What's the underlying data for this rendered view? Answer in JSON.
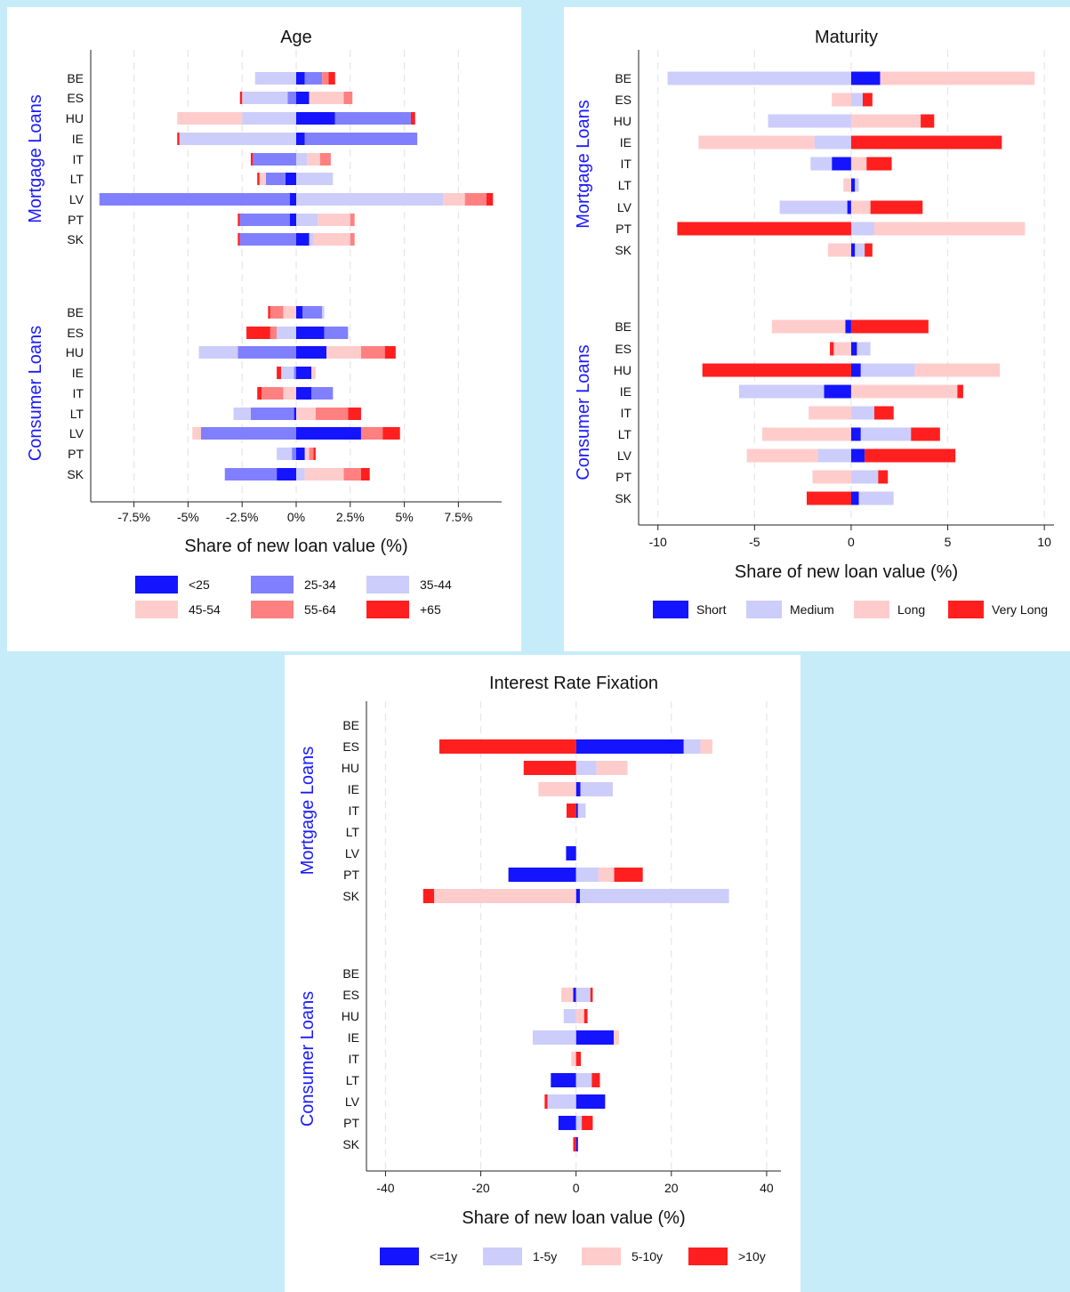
{
  "chart_data": [
    {
      "type": "bar",
      "orientation": "horizontal",
      "stacked": "diverging",
      "title": "Age",
      "xlabel": "Share of new loan value (%)",
      "xlim": [
        -9.5,
        9.5
      ],
      "x_ticks": [
        -7.5,
        -5,
        -2.5,
        0,
        2.5,
        5,
        7.5
      ],
      "x_tick_labels": [
        "-7.5%",
        "-5%",
        "-2.5%",
        "0%",
        "2.5%",
        "5%",
        "7.5%"
      ],
      "grid": "vertical dashed",
      "legend_placement": "bottom",
      "groups": [
        {
          "label": "Mortgage Loans",
          "categories": [
            "BE",
            "ES",
            "HU",
            "IE",
            "IT",
            "LT",
            "LV",
            "PT",
            "SK"
          ]
        },
        {
          "label": "Consumer Loans",
          "categories": [
            "BE",
            "ES",
            "HU",
            "IE",
            "IT",
            "LT",
            "LV",
            "PT",
            "SK"
          ]
        }
      ],
      "series": [
        {
          "name": "<25",
          "color": "#1414ff"
        },
        {
          "name": "25-34",
          "color": "#8080ff"
        },
        {
          "name": "35-44",
          "color": "#cccdfa"
        },
        {
          "name": "45-54",
          "color": "#ffcccc"
        },
        {
          "name": "55-64",
          "color": "#ff8080"
        },
        {
          "name": "+65",
          "color": "#ff1f1f"
        }
      ],
      "values": [
        [
          [
            0.4,
            0.8,
            -1.9,
            0,
            0.3,
            0.3
          ],
          [
            0.6,
            -0.4,
            -2.1,
            1.6,
            0.4,
            -0.1
          ],
          [
            1.8,
            3.5,
            -2.5,
            -3,
            0,
            0.2
          ],
          [
            0.4,
            5.2,
            -5.4,
            0,
            0,
            -0.1
          ],
          [
            0,
            -2,
            0.5,
            0.6,
            0.5,
            -0.1
          ],
          [
            -0.5,
            -0.9,
            1.7,
            -0.3,
            0,
            -0.1
          ],
          [
            -0.3,
            -8.8,
            6.8,
            1,
            1,
            0.3
          ],
          [
            -0.3,
            -2.3,
            1,
            1.5,
            0.2,
            -0.1
          ],
          [
            0.6,
            -2.6,
            0.2,
            1.7,
            0.2,
            -0.1
          ]
        ],
        [
          [
            0.3,
            0.9,
            0.1,
            -0.6,
            -0.6,
            -0.1
          ],
          [
            1.3,
            1.1,
            -0.9,
            0,
            -0.3,
            -1.1
          ],
          [
            1.4,
            -2.7,
            -1.8,
            1.6,
            1.1,
            0.5
          ],
          [
            0.7,
            -0.1,
            -0.6,
            0.2,
            0,
            -0.2
          ],
          [
            0.7,
            1,
            0,
            -0.6,
            -1,
            -0.2
          ],
          [
            -0.1,
            -2,
            -0.8,
            0.9,
            1.5,
            0.6
          ],
          [
            3,
            -4.4,
            0,
            -0.4,
            1,
            0.8
          ],
          [
            0.4,
            -0.2,
            -0.7,
            0.2,
            0.2,
            0.1
          ],
          [
            -0.9,
            -2.4,
            0.4,
            1.8,
            0.8,
            0.4
          ]
        ]
      ]
    },
    {
      "type": "bar",
      "orientation": "horizontal",
      "stacked": "diverging",
      "title": "Maturity",
      "xlabel": "Share of new loan value (%)",
      "xlim": [
        -11,
        10.5
      ],
      "x_ticks": [
        -10,
        -5,
        0,
        5,
        10
      ],
      "x_tick_labels": [
        "-10",
        "-5",
        "0",
        "5",
        "10"
      ],
      "grid": "vertical dashed",
      "legend_placement": "bottom",
      "groups": [
        {
          "label": "Mortgage Loans",
          "categories": [
            "BE",
            "ES",
            "HU",
            "IE",
            "IT",
            "LT",
            "LV",
            "PT",
            "SK"
          ]
        },
        {
          "label": "Consumer Loans",
          "categories": [
            "BE",
            "ES",
            "HU",
            "IE",
            "IT",
            "LT",
            "LV",
            "PT",
            "SK"
          ]
        }
      ],
      "series": [
        {
          "name": "Short",
          "color": "#1414ff"
        },
        {
          "name": "Medium",
          "color": "#cccdfa"
        },
        {
          "name": "Long",
          "color": "#ffcccc"
        },
        {
          "name": "Very Long",
          "color": "#ff1f1f"
        }
      ],
      "values": [
        [
          [
            1.5,
            -9.5,
            8.0,
            0
          ],
          [
            0,
            0.6,
            -1.0,
            0.5
          ],
          [
            0,
            -4.3,
            3.6,
            0.7
          ],
          [
            0,
            -1.9,
            -6.0,
            7.8
          ],
          [
            -1,
            -1.1,
            0.8,
            1.3
          ],
          [
            0.2,
            0.2,
            -0.4,
            0
          ],
          [
            -0.2,
            -3.5,
            1.0,
            2.7
          ],
          [
            0,
            1.2,
            7.8,
            -9.0
          ],
          [
            0.2,
            0.5,
            -1.2,
            0.4
          ]
        ],
        [
          [
            -0.3,
            0,
            -3.8,
            4.0
          ],
          [
            0.3,
            0.7,
            -0.9,
            -0.2
          ],
          [
            0.5,
            2.8,
            4.4,
            -7.7
          ],
          [
            -1.4,
            -4.4,
            5.5,
            0.3
          ],
          [
            0,
            1.2,
            -2.2,
            1.0
          ],
          [
            0.5,
            2.6,
            -4.6,
            1.5
          ],
          [
            0.7,
            -1.7,
            -3.7,
            4.7
          ],
          [
            0,
            1.4,
            -2.0,
            0.5
          ],
          [
            0.4,
            1.8,
            0,
            -2.3
          ]
        ]
      ]
    },
    {
      "type": "bar",
      "orientation": "horizontal",
      "stacked": "diverging",
      "title": "Interest Rate Fixation",
      "xlabel": "Share of new loan value (%)",
      "xlim": [
        -44,
        43
      ],
      "x_ticks": [
        -40,
        -20,
        0,
        20,
        40
      ],
      "x_tick_labels": [
        "-40",
        "-20",
        "0",
        "20",
        "40"
      ],
      "grid": "vertical dashed",
      "legend_placement": "bottom",
      "groups": [
        {
          "label": "Mortgage Loans",
          "categories": [
            "BE",
            "ES",
            "HU",
            "IE",
            "IT",
            "LT",
            "LV",
            "PT",
            "SK"
          ]
        },
        {
          "label": "Consumer Loans",
          "categories": [
            "BE",
            "ES",
            "HU",
            "IE",
            "IT",
            "LT",
            "LV",
            "PT",
            "SK"
          ]
        }
      ],
      "series": [
        {
          "name": "<=1y",
          "color": "#1414ff"
        },
        {
          "name": "1-5y",
          "color": "#cccdfa"
        },
        {
          "name": "5-10y",
          "color": "#ffcccc"
        },
        {
          "name": ">10y",
          "color": "#ff1f1f"
        }
      ],
      "values": [
        [
          [
            0,
            0,
            0,
            0
          ],
          [
            22.6,
            3.5,
            2.5,
            -28.7
          ],
          [
            0,
            4.3,
            6.5,
            -11
          ],
          [
            0.9,
            6.8,
            -7.9,
            0
          ],
          [
            0.4,
            1.6,
            0,
            -2
          ],
          [
            0,
            0,
            0,
            0
          ],
          [
            -2.1,
            0,
            0,
            0
          ],
          [
            -14.2,
            4.7,
            3.3,
            6
          ],
          [
            0.8,
            31.3,
            -29.8,
            -2.3
          ]
        ],
        [
          [
            0,
            0,
            0,
            0
          ],
          [
            -0.6,
            3,
            -2.5,
            0.5
          ],
          [
            0,
            -2.6,
            1.7,
            0.7
          ],
          [
            7.9,
            -9.1,
            1.1,
            0
          ],
          [
            0,
            0,
            -1,
            1
          ],
          [
            -5.3,
            3.3,
            0,
            1.7
          ],
          [
            6.1,
            -6,
            0,
            -0.6
          ],
          [
            -3.7,
            1.2,
            0,
            2.3
          ],
          [
            0.4,
            0,
            0,
            -0.6
          ]
        ]
      ]
    }
  ]
}
